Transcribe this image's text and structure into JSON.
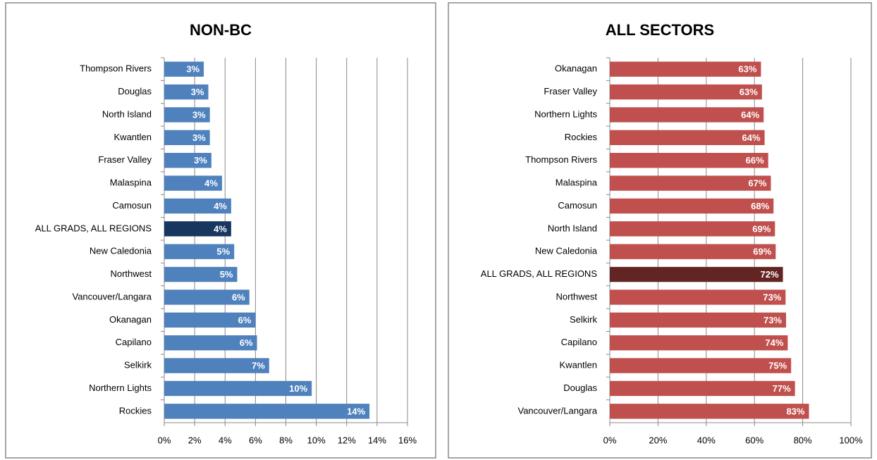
{
  "chart_data": [
    {
      "type": "bar",
      "orientation": "horizontal",
      "title": "NON-BC",
      "categories": [
        "Thompson Rivers",
        "Douglas",
        "North Island",
        "Kwantlen",
        "Fraser Valley",
        "Malaspina",
        "Camosun",
        "ALL GRADS, ALL REGIONS",
        "New Caledonia",
        "Northwest",
        "Vancouver/Langara",
        "Okanagan",
        "Capilano",
        "Selkirk",
        "Northern Lights",
        "Rockies"
      ],
      "values": [
        2.6,
        2.9,
        3.0,
        3.0,
        3.1,
        3.8,
        4.4,
        4.4,
        4.6,
        4.8,
        5.6,
        6.0,
        6.1,
        6.9,
        9.7,
        13.5
      ],
      "value_labels": [
        "3%",
        "3%",
        "3%",
        "3%",
        "3%",
        "4%",
        "4%",
        "4%",
        "5%",
        "5%",
        "6%",
        "6%",
        "6%",
        "7%",
        "10%",
        "14%"
      ],
      "colors": [
        "#4f81bd",
        "#4f81bd",
        "#4f81bd",
        "#4f81bd",
        "#4f81bd",
        "#4f81bd",
        "#4f81bd",
        "#17375e",
        "#4f81bd",
        "#4f81bd",
        "#4f81bd",
        "#4f81bd",
        "#4f81bd",
        "#4f81bd",
        "#4f81bd",
        "#4f81bd"
      ],
      "xlim": [
        0,
        16
      ],
      "xticks": [
        {
          "value": 0,
          "label": "0%"
        },
        {
          "value": 2,
          "label": "2%"
        },
        {
          "value": 4,
          "label": "4%"
        },
        {
          "value": 6,
          "label": "6%"
        },
        {
          "value": 8,
          "label": "8%"
        },
        {
          "value": 10,
          "label": "10%"
        },
        {
          "value": 12,
          "label": "12%"
        },
        {
          "value": 14,
          "label": "14%"
        },
        {
          "value": 16,
          "label": "16%"
        }
      ],
      "grid": true
    },
    {
      "type": "bar",
      "orientation": "horizontal",
      "title": "ALL SECTORS",
      "categories": [
        "Okanagan",
        "Fraser Valley",
        "Northern Lights",
        "Rockies",
        "Thompson Rivers",
        "Malaspina",
        "Camosun",
        "North Island",
        "New Caledonia",
        "ALL GRADS, ALL REGIONS",
        "Northwest",
        "Selkirk",
        "Capilano",
        "Kwantlen",
        "Douglas",
        "Vancouver/Langara"
      ],
      "values": [
        62.7,
        63.1,
        63.8,
        64.2,
        65.7,
        66.8,
        67.9,
        68.5,
        68.8,
        71.8,
        72.9,
        73.1,
        73.8,
        75.2,
        76.8,
        82.6
      ],
      "value_labels": [
        "63%",
        "63%",
        "64%",
        "64%",
        "66%",
        "67%",
        "68%",
        "69%",
        "69%",
        "72%",
        "73%",
        "73%",
        "74%",
        "75%",
        "77%",
        "83%"
      ],
      "colors": [
        "#c0504d",
        "#c0504d",
        "#c0504d",
        "#c0504d",
        "#c0504d",
        "#c0504d",
        "#c0504d",
        "#c0504d",
        "#c0504d",
        "#632523",
        "#c0504d",
        "#c0504d",
        "#c0504d",
        "#c0504d",
        "#c0504d",
        "#c0504d"
      ],
      "xlim": [
        0,
        100
      ],
      "xticks": [
        {
          "value": 0,
          "label": "0%"
        },
        {
          "value": 20,
          "label": "20%"
        },
        {
          "value": 40,
          "label": "40%"
        },
        {
          "value": 60,
          "label": "60%"
        },
        {
          "value": 80,
          "label": "80%"
        },
        {
          "value": 100,
          "label": "100%"
        }
      ],
      "grid": true
    }
  ]
}
